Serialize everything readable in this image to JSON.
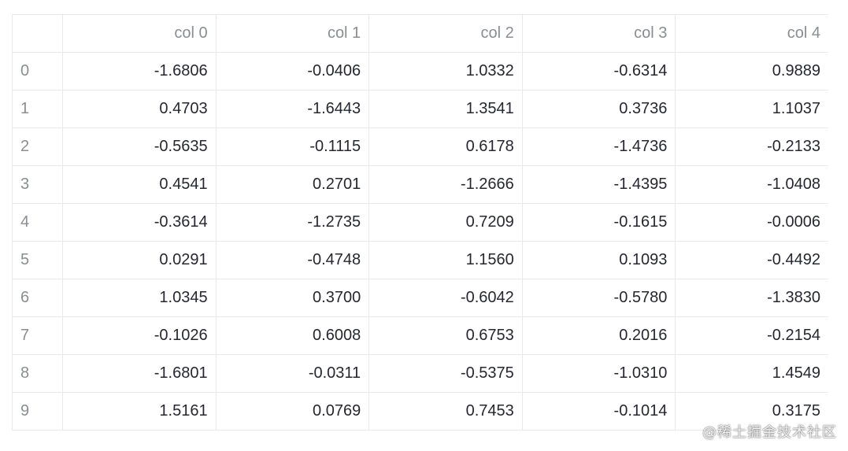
{
  "table": {
    "columns": [
      "",
      "col 0",
      "col 1",
      "col 2",
      "col 3",
      "col 4"
    ],
    "rows": [
      {
        "index": "0",
        "values": [
          "-1.6806",
          "-0.0406",
          "1.0332",
          "-0.6314",
          "0.9889"
        ]
      },
      {
        "index": "1",
        "values": [
          "0.4703",
          "-1.6443",
          "1.3541",
          "0.3736",
          "1.1037"
        ]
      },
      {
        "index": "2",
        "values": [
          "-0.5635",
          "-0.1115",
          "0.6178",
          "-1.4736",
          "-0.2133"
        ]
      },
      {
        "index": "3",
        "values": [
          "0.4541",
          "0.2701",
          "-1.2666",
          "-1.4395",
          "-1.0408"
        ]
      },
      {
        "index": "4",
        "values": [
          "-0.3614",
          "-1.2735",
          "0.7209",
          "-0.1615",
          "-0.0006"
        ]
      },
      {
        "index": "5",
        "values": [
          "0.0291",
          "-0.4748",
          "1.1560",
          "0.1093",
          "-0.4492"
        ]
      },
      {
        "index": "6",
        "values": [
          "1.0345",
          "0.3700",
          "-0.6042",
          "-0.5780",
          "-1.3830"
        ]
      },
      {
        "index": "7",
        "values": [
          "-0.1026",
          "0.6008",
          "0.6753",
          "0.2016",
          "-0.2154"
        ]
      },
      {
        "index": "8",
        "values": [
          "-1.6801",
          "-0.0311",
          "-0.5375",
          "-1.0310",
          "1.4549"
        ]
      },
      {
        "index": "9",
        "values": [
          "1.5161",
          "0.0769",
          "0.7453",
          "-0.1014",
          "0.3175"
        ]
      }
    ]
  },
  "watermark": "@稀土掘金技术社区",
  "colors": {
    "header_text": "#8a8d93",
    "cell_text": "#262730",
    "grid_line": "#e6e9ef"
  }
}
